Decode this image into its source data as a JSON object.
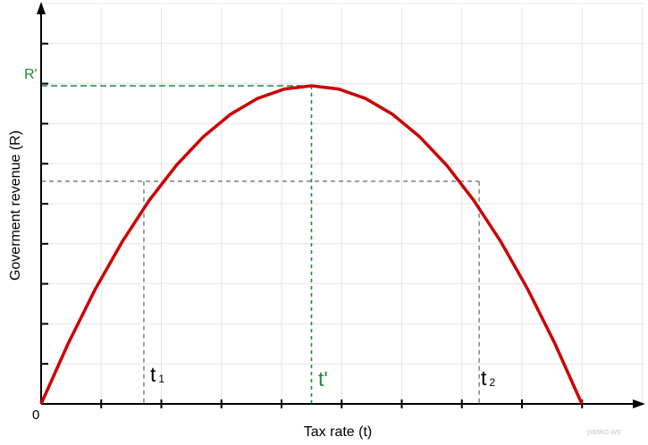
{
  "chart_data": {
    "type": "line",
    "title": "",
    "xlabel": "Tax rate (t)",
    "ylabel": "Goverment revenue (R)",
    "origin_label": "0",
    "xlim": [
      0,
      1
    ],
    "ylim": [
      0,
      1
    ],
    "grid": true,
    "series": [
      {
        "x": [
          0,
          0.05,
          0.1,
          0.15,
          0.2,
          0.25,
          0.3,
          0.35,
          0.4,
          0.45,
          0.5,
          0.55,
          0.6,
          0.65,
          0.7,
          0.75,
          0.8,
          0.85,
          0.9,
          0.95,
          1.0
        ],
        "y": [
          0,
          0.19,
          0.36,
          0.51,
          0.64,
          0.75,
          0.84,
          0.91,
          0.96,
          0.99,
          1.0,
          0.99,
          0.96,
          0.91,
          0.84,
          0.75,
          0.64,
          0.51,
          0.36,
          0.19,
          0
        ],
        "color": "#cc0000"
      }
    ],
    "annotations": {
      "peak": {
        "x_label": "t'",
        "y_label": "R'",
        "x": 0.5,
        "y": 1.0,
        "color": "#1e8a3c"
      },
      "t1": {
        "label": "t",
        "subscript": "1",
        "x": 0.19
      },
      "t2": {
        "label": "t",
        "subscript": "2",
        "x": 0.81
      },
      "equal_revenue_y": 0.7
    },
    "watermark": "pasko.ws"
  },
  "colors": {
    "curve": "#cc0000",
    "peak": "#1e8a3c",
    "guide": "#888888",
    "axis": "#000000",
    "grid": "#e6e6e6"
  }
}
